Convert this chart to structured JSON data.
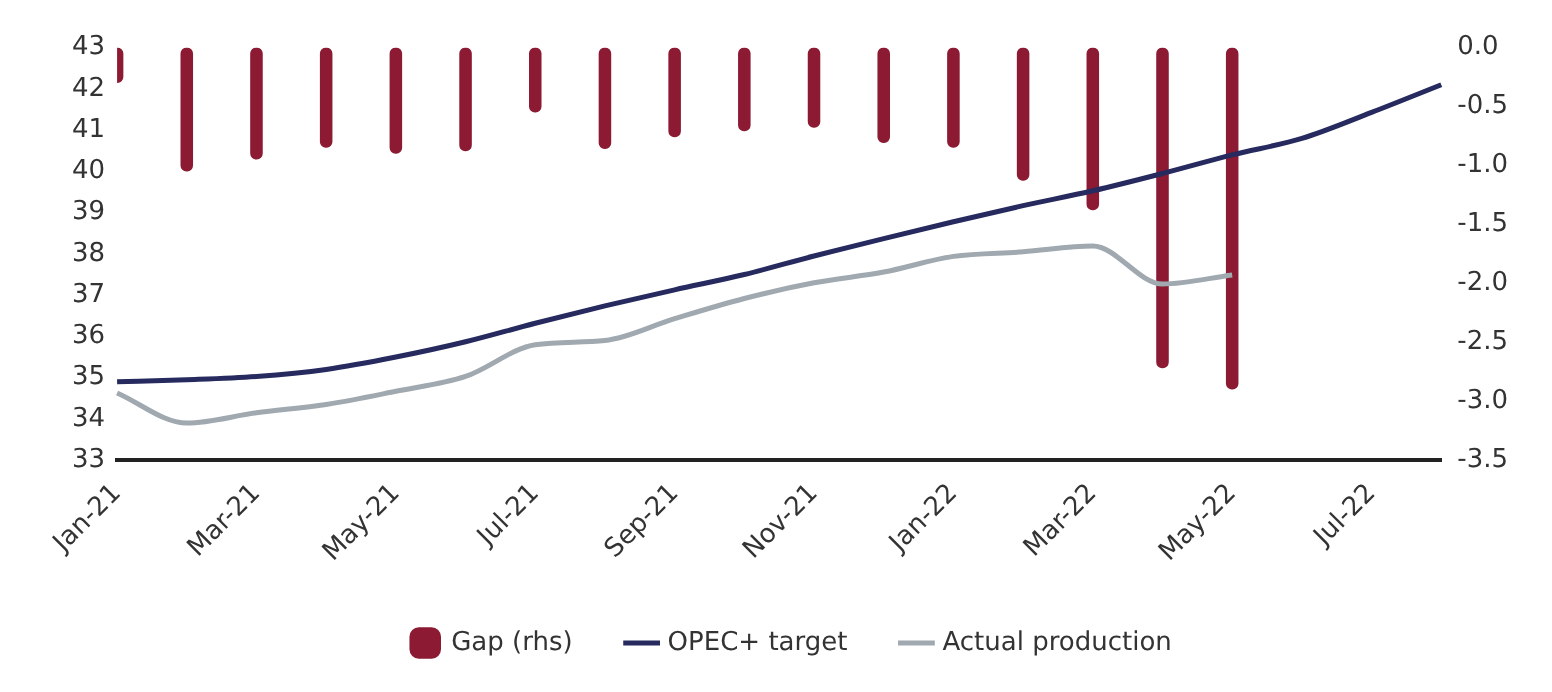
{
  "chart_data": {
    "type": "line",
    "categories": [
      "Jan-21",
      null,
      "Mar-21",
      null,
      "May-21",
      null,
      "Jul-21",
      null,
      "Sep-21",
      null,
      "Nov-21",
      null,
      "Jan-22",
      null,
      "Mar-22",
      null,
      "May-22",
      null,
      "Jul-22",
      null
    ],
    "series": [
      {
        "name": "Gap (rhs)",
        "type": "bar",
        "axis": "y2",
        "color": "#8b1a32",
        "values": [
          -0.3,
          -1.05,
          -0.95,
          -0.85,
          -0.9,
          -0.88,
          -0.55,
          -0.86,
          -0.76,
          -0.71,
          -0.68,
          -0.81,
          -0.85,
          -1.13,
          -1.38,
          -2.72,
          -2.9,
          null,
          null,
          null
        ]
      },
      {
        "name": "OPEC+ target",
        "color": "#262a5e",
        "values": [
          34.9,
          34.95,
          35.03,
          35.2,
          35.5,
          35.87,
          36.32,
          36.74,
          37.13,
          37.5,
          37.95,
          38.37,
          38.78,
          39.17,
          39.53,
          39.95,
          40.4,
          40.8,
          41.43,
          42.1
        ]
      },
      {
        "name": "Actual production",
        "color": "#a0a8b0",
        "values": [
          34.63,
          33.9,
          34.15,
          34.35,
          34.67,
          35.03,
          35.8,
          35.9,
          36.43,
          36.92,
          37.3,
          37.56,
          37.94,
          38.05,
          38.19,
          37.27,
          37.49,
          null,
          null,
          null
        ]
      }
    ],
    "ylim": [
      33,
      43
    ],
    "yticks": [
      33,
      34,
      35,
      36,
      37,
      38,
      39,
      40,
      41,
      42,
      43
    ],
    "y2lim": [
      -3.5,
      0
    ],
    "y2ticks": [
      {
        "value": 0,
        "label": "0.0"
      },
      {
        "value": -0.5,
        "label": "-0.5"
      },
      {
        "value": -1,
        "label": "-1.0"
      },
      {
        "value": -1.5,
        "label": "-1.5"
      },
      {
        "value": -2,
        "label": "-2.0"
      },
      {
        "value": -2.5,
        "label": "-2.5"
      },
      {
        "value": -3,
        "label": "-3.0"
      },
      {
        "value": -3.5,
        "label": "-3.5"
      }
    ],
    "grid": false,
    "legend": "bottom",
    "marker": "none",
    "line_style": "solid"
  }
}
